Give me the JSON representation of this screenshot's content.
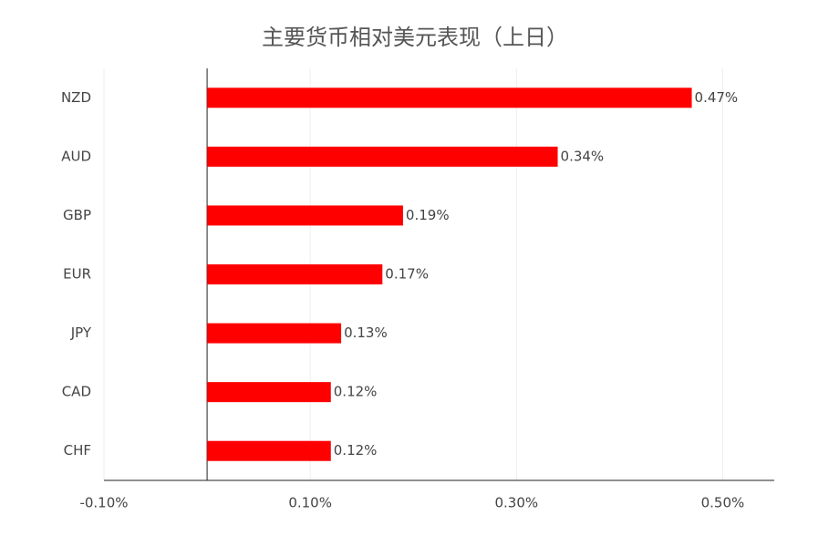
{
  "chart_data": {
    "type": "bar",
    "orientation": "horizontal",
    "title": "主要货币相对美元表现（上日）",
    "categories": [
      "NZD",
      "AUD",
      "GBP",
      "EUR",
      "JPY",
      "CAD",
      "CHF"
    ],
    "values": [
      0.47,
      0.34,
      0.19,
      0.17,
      0.13,
      0.12,
      0.12
    ],
    "value_labels": [
      "0.47%",
      "0.34%",
      "0.19%",
      "0.17%",
      "0.13%",
      "0.12%",
      "0.12%"
    ],
    "color": "#ff0000",
    "xlim": [
      -0.1,
      0.55
    ],
    "xticks": [
      {
        "value": -0.1,
        "label": "-0.10%"
      },
      {
        "value": 0.1,
        "label": "0.10%"
      },
      {
        "value": 0.3,
        "label": "0.30%"
      },
      {
        "value": 0.5,
        "label": "0.50%"
      }
    ],
    "grid": true
  }
}
